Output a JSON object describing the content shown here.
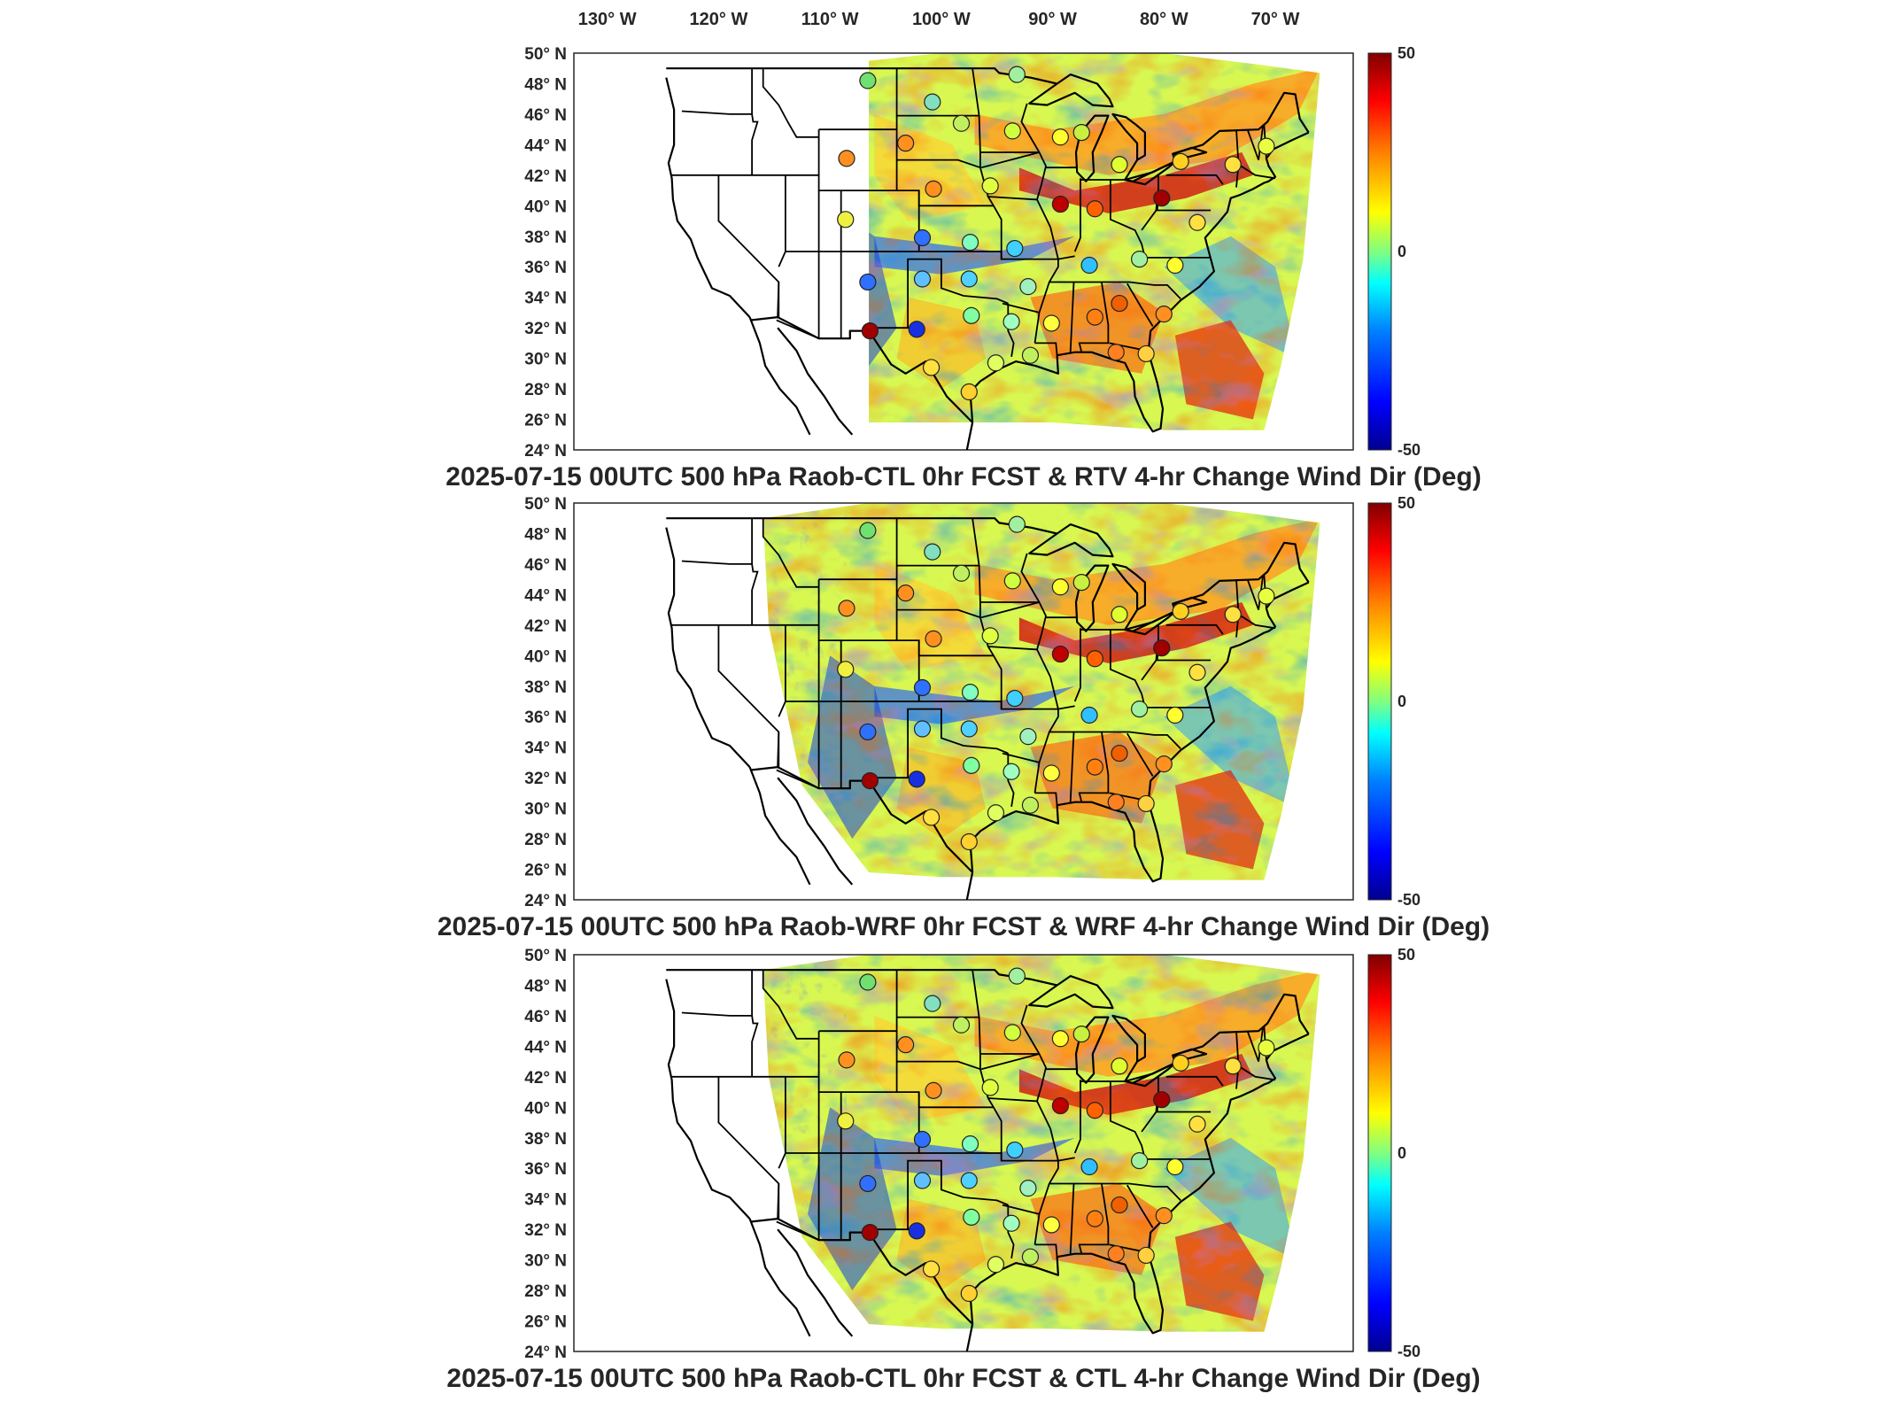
{
  "lon_labels": [
    "130",
    "120",
    "110",
    "100",
    "90",
    "80",
    "70"
  ],
  "lon_suffix": "W",
  "lat_labels": [
    "50",
    "48",
    "46",
    "44",
    "42",
    "40",
    "38",
    "36",
    "34",
    "32",
    "30",
    "28",
    "26",
    "24"
  ],
  "lat_suffix": "N",
  "degree_symbol": "°",
  "colorbar": {
    "max_label": "50",
    "mid_label": "0",
    "min_label": "-50",
    "colors": [
      "#00008f",
      "#0000ff",
      "#0080ff",
      "#00ffff",
      "#80ff80",
      "#ffff00",
      "#ff8000",
      "#ff0000",
      "#800000"
    ]
  },
  "panels": [
    {
      "title": "2025-07-15 00UTC 500 hPa Raob-CTL 0hr FCST & RTV 4-hr Change Wind Dir (Deg)"
    },
    {
      "title": "2025-07-15 00UTC 500 hPa Raob-WRF 0hr FCST & WRF 4-hr Change Wind Dir (Deg)"
    },
    {
      "title": "2025-07-15 00UTC 500 hPa Raob-CTL 0hr FCST & CTL 4-hr Change Wind Dir (Deg)"
    }
  ],
  "stations": [
    {
      "lon": -106.6,
      "lat": 48.2,
      "color": "#70e070"
    },
    {
      "lon": -100.8,
      "lat": 46.8,
      "color": "#80e0c0"
    },
    {
      "lon": -93.2,
      "lat": 48.6,
      "color": "#a0f0a0"
    },
    {
      "lon": -103.2,
      "lat": 44.1,
      "color": "#ff9020"
    },
    {
      "lon": -98.2,
      "lat": 45.4,
      "color": "#c0f060"
    },
    {
      "lon": -93.6,
      "lat": 44.9,
      "color": "#d0ff40"
    },
    {
      "lon": -89.3,
      "lat": 44.5,
      "color": "#ffff30"
    },
    {
      "lon": -87.4,
      "lat": 44.8,
      "color": "#c8f040"
    },
    {
      "lon": -84.0,
      "lat": 42.7,
      "color": "#e0ff30"
    },
    {
      "lon": -78.5,
      "lat": 42.9,
      "color": "#ffd020"
    },
    {
      "lon": -73.8,
      "lat": 42.7,
      "color": "#ffe040"
    },
    {
      "lon": -70.8,
      "lat": 43.9,
      "color": "#e8ff40"
    },
    {
      "lon": -108.5,
      "lat": 43.1,
      "color": "#ff9020"
    },
    {
      "lon": -108.6,
      "lat": 39.1,
      "color": "#f0f040"
    },
    {
      "lon": -100.7,
      "lat": 41.1,
      "color": "#ff9020"
    },
    {
      "lon": -95.6,
      "lat": 41.3,
      "color": "#e0ff40"
    },
    {
      "lon": -89.3,
      "lat": 40.1,
      "color": "#c00000"
    },
    {
      "lon": -86.2,
      "lat": 39.8,
      "color": "#ff6000"
    },
    {
      "lon": -80.2,
      "lat": 40.5,
      "color": "#a00000"
    },
    {
      "lon": -77.0,
      "lat": 38.9,
      "color": "#ffe040"
    },
    {
      "lon": -101.7,
      "lat": 37.9,
      "color": "#3070ff"
    },
    {
      "lon": -97.4,
      "lat": 37.6,
      "color": "#80ffc0"
    },
    {
      "lon": -93.4,
      "lat": 37.2,
      "color": "#40d0ff"
    },
    {
      "lon": -86.7,
      "lat": 36.1,
      "color": "#30c0ff"
    },
    {
      "lon": -82.2,
      "lat": 36.5,
      "color": "#a0f0a0"
    },
    {
      "lon": -79.0,
      "lat": 36.1,
      "color": "#ffff30"
    },
    {
      "lon": -106.6,
      "lat": 35.0,
      "color": "#3070ff"
    },
    {
      "lon": -101.7,
      "lat": 35.2,
      "color": "#60c0ff"
    },
    {
      "lon": -97.5,
      "lat": 35.2,
      "color": "#50d0ff"
    },
    {
      "lon": -92.2,
      "lat": 34.7,
      "color": "#a0f0c0"
    },
    {
      "lon": -86.2,
      "lat": 32.7,
      "color": "#ff8010"
    },
    {
      "lon": -84.0,
      "lat": 33.6,
      "color": "#f06000"
    },
    {
      "lon": -80.0,
      "lat": 32.9,
      "color": "#ff9020"
    },
    {
      "lon": -106.4,
      "lat": 31.8,
      "color": "#a00000"
    },
    {
      "lon": -102.2,
      "lat": 31.9,
      "color": "#1830e0"
    },
    {
      "lon": -97.3,
      "lat": 32.8,
      "color": "#80ffa0"
    },
    {
      "lon": -93.7,
      "lat": 32.4,
      "color": "#a0ffc0"
    },
    {
      "lon": -90.1,
      "lat": 32.3,
      "color": "#ffff40"
    },
    {
      "lon": -84.3,
      "lat": 30.4,
      "color": "#ff8020"
    },
    {
      "lon": -100.9,
      "lat": 29.4,
      "color": "#ffe040"
    },
    {
      "lon": -97.5,
      "lat": 27.8,
      "color": "#ffd030"
    },
    {
      "lon": -95.1,
      "lat": 29.7,
      "color": "#e0ff60"
    },
    {
      "lon": -92.0,
      "lat": 30.2,
      "color": "#c0f060"
    },
    {
      "lon": -81.6,
      "lat": 30.3,
      "color": "#ffd040"
    }
  ],
  "state_borders": [
    [
      [
        -124.2,
        42.0
      ],
      [
        -120.0,
        42.0
      ],
      [
        -117.0,
        42.0
      ],
      [
        -111.0,
        42.0
      ]
    ],
    [
      [
        -120.0,
        42.0
      ],
      [
        -120.0,
        39.0
      ],
      [
        -114.6,
        35.0
      ],
      [
        -114.7,
        32.7
      ]
    ],
    [
      [
        -117.0,
        49.0
      ],
      [
        -117.0,
        46.0
      ],
      [
        -116.9,
        45.5
      ],
      [
        -116.5,
        45.5
      ],
      [
        -117.0,
        44.3
      ],
      [
        -117.0,
        42.0
      ]
    ],
    [
      [
        -123.3,
        46.2
      ],
      [
        -119.0,
        46.0
      ],
      [
        -117.0,
        46.0
      ]
    ],
    [
      [
        -114.0,
        42.0
      ],
      [
        -114.0,
        37.0
      ],
      [
        -114.6,
        36.0
      ]
    ],
    [
      [
        -111.0,
        45.0
      ],
      [
        -111.0,
        41.0
      ],
      [
        -104.0,
        41.0
      ]
    ],
    [
      [
        -111.0,
        45.0
      ],
      [
        -104.0,
        45.0
      ]
    ],
    [
      [
        -116.0,
        49.0
      ],
      [
        -116.0,
        47.8
      ],
      [
        -114.6,
        46.6
      ],
      [
        -113.8,
        45.5
      ],
      [
        -113.0,
        44.5
      ],
      [
        -111.0,
        44.5
      ]
    ],
    [
      [
        -114.0,
        37.0
      ],
      [
        -102.0,
        37.0
      ]
    ],
    [
      [
        -111.0,
        41.0
      ],
      [
        -111.0,
        31.3
      ]
    ],
    [
      [
        -109.0,
        41.0
      ],
      [
        -109.0,
        31.3
      ]
    ],
    [
      [
        -114.8,
        32.5
      ],
      [
        -111.0,
        31.3
      ],
      [
        -108.2,
        31.3
      ],
      [
        -108.2,
        31.8
      ],
      [
        -106.5,
        31.8
      ]
    ],
    [
      [
        -106.6,
        32.0
      ],
      [
        -103.0,
        32.0
      ],
      [
        -103.0,
        36.5
      ],
      [
        -100.0,
        36.5
      ],
      [
        -100.0,
        34.6
      ],
      [
        -98.0,
        34.1
      ],
      [
        -95.0,
        33.9
      ],
      [
        -94.0,
        33.6
      ]
    ],
    [
      [
        -102.0,
        41.0
      ],
      [
        -102.0,
        37.0
      ],
      [
        -94.6,
        37.0
      ],
      [
        -94.6,
        36.5
      ],
      [
        -89.5,
        36.5
      ],
      [
        -88.0,
        36.7
      ]
    ],
    [
      [
        -104.0,
        49.0
      ],
      [
        -104.0,
        41.0
      ],
      [
        -102.0,
        41.0
      ],
      [
        -102.0,
        40.0
      ],
      [
        -95.3,
        40.0
      ]
    ],
    [
      [
        -104.0,
        45.9
      ],
      [
        -96.6,
        45.9
      ]
    ],
    [
      [
        -104.0,
        43.0
      ],
      [
        -98.5,
        43.0
      ],
      [
        -96.5,
        42.5
      ]
    ],
    [
      [
        -97.2,
        49.0
      ],
      [
        -96.6,
        45.9
      ],
      [
        -96.5,
        43.5
      ],
      [
        -91.2,
        43.5
      ]
    ],
    [
      [
        -96.5,
        43.5
      ],
      [
        -96.5,
        42.5
      ],
      [
        -95.8,
        40.6
      ],
      [
        -95.3,
        40.0
      ],
      [
        -94.6,
        39.1
      ],
      [
        -94.6,
        36.5
      ]
    ],
    [
      [
        -96.4,
        42.5
      ],
      [
        -91.2,
        43.5
      ],
      [
        -90.6,
        42.6
      ],
      [
        -91.0,
        41.4
      ],
      [
        -91.4,
        40.4
      ],
      [
        -95.8,
        40.6
      ]
    ],
    [
      [
        -92.3,
        46.7
      ],
      [
        -92.8,
        45.5
      ],
      [
        -91.2,
        43.5
      ]
    ],
    [
      [
        -90.6,
        42.5
      ],
      [
        -87.8,
        42.5
      ]
    ],
    [
      [
        -91.4,
        40.4
      ],
      [
        -90.2,
        38.6
      ],
      [
        -89.5,
        36.5
      ],
      [
        -89.5,
        36.0
      ],
      [
        -90.3,
        35.0
      ],
      [
        -91.2,
        33.0
      ],
      [
        -91.6,
        31.0
      ]
    ],
    [
      [
        -94.0,
        33.6
      ],
      [
        -94.0,
        31.8
      ],
      [
        -93.5,
        31.0
      ],
      [
        -93.7,
        30.1
      ]
    ],
    [
      [
        -94.5,
        33.6
      ],
      [
        -91.2,
        33.0
      ]
    ],
    [
      [
        -91.6,
        31.0
      ],
      [
        -89.7,
        31.0
      ],
      [
        -89.6,
        30.2
      ]
    ],
    [
      [
        -88.1,
        35.0
      ],
      [
        -88.4,
        30.4
      ]
    ],
    [
      [
        -85.6,
        35.0
      ],
      [
        -85.0,
        32.2
      ],
      [
        -85.0,
        31.0
      ],
      [
        -87.6,
        31.0
      ],
      [
        -87.4,
        30.4
      ]
    ],
    [
      [
        -90.3,
        35.0
      ],
      [
        -84.3,
        35.0
      ]
    ],
    [
      [
        -88.0,
        37.0
      ],
      [
        -87.5,
        37.9
      ],
      [
        -87.5,
        41.8
      ]
    ],
    [
      [
        -84.8,
        41.7
      ],
      [
        -84.8,
        39.1
      ],
      [
        -82.6,
        38.4
      ],
      [
        -82.0,
        37.5
      ],
      [
        -81.7,
        36.6
      ],
      [
        -75.9,
        36.6
      ]
    ],
    [
      [
        -87.5,
        41.7
      ],
      [
        -84.8,
        41.7
      ],
      [
        -83.5,
        41.7
      ]
    ],
    [
      [
        -80.5,
        42.0
      ],
      [
        -80.5,
        40.6
      ],
      [
        -80.6,
        39.7
      ],
      [
        -79.5,
        39.7
      ],
      [
        -75.8,
        39.7
      ]
    ],
    [
      [
        -80.6,
        40.6
      ],
      [
        -80.7,
        39.7
      ],
      [
        -82.0,
        38.4
      ]
    ],
    [
      [
        -79.8,
        42.0
      ],
      [
        -75.3,
        42.0
      ],
      [
        -74.7,
        41.4
      ]
    ],
    [
      [
        -84.3,
        35.0
      ],
      [
        -83.1,
        35.0
      ],
      [
        -80.9,
        34.8
      ],
      [
        -79.7,
        34.8
      ],
      [
        -78.5,
        33.9
      ]
    ],
    [
      [
        -83.3,
        34.9
      ],
      [
        -82.0,
        33.3
      ],
      [
        -81.0,
        32.1
      ]
    ],
    [
      [
        -84.9,
        31.0
      ],
      [
        -82.2,
        30.6
      ],
      [
        -81.5,
        30.7
      ]
    ],
    [
      [
        -73.5,
        45.0
      ],
      [
        -73.3,
        42.7
      ],
      [
        -73.5,
        41.2
      ]
    ],
    [
      [
        -73.3,
        42.7
      ],
      [
        -71.8,
        42.0
      ],
      [
        -70.0,
        41.8
      ]
    ],
    [
      [
        -72.5,
        45.0
      ],
      [
        -71.5,
        43.0
      ],
      [
        -71.1,
        45.3
      ]
    ],
    [
      [
        -70.8,
        43.1
      ],
      [
        -71.0,
        45.3
      ]
    ],
    [
      [
        -114.6,
        35.0
      ],
      [
        -114.6,
        32.7
      ]
    ]
  ],
  "coast": [
    [
      [
        -124.7,
        48.4
      ],
      [
        -124.0,
        46.3
      ],
      [
        -124.0,
        44.0
      ],
      [
        -124.5,
        42.8
      ],
      [
        -124.2,
        41.8
      ],
      [
        -124.1,
        40.4
      ],
      [
        -123.7,
        39.0
      ],
      [
        -122.5,
        37.8
      ],
      [
        -121.9,
        36.6
      ],
      [
        -120.6,
        34.6
      ],
      [
        -119.0,
        34.1
      ],
      [
        -117.2,
        32.7
      ]
    ],
    [
      [
        -117.2,
        32.7
      ],
      [
        -116.3,
        31.0
      ],
      [
        -115.8,
        29.5
      ],
      [
        -114.5,
        28.0
      ],
      [
        -113.0,
        26.8
      ],
      [
        -111.8,
        25.0
      ]
    ],
    [
      [
        -114.7,
        32.0
      ],
      [
        -113.0,
        30.5
      ],
      [
        -112.0,
        29.0
      ],
      [
        -110.5,
        27.5
      ],
      [
        -109.2,
        26.0
      ],
      [
        -108.0,
        25.0
      ]
    ],
    [
      [
        -97.2,
        25.8
      ],
      [
        -97.4,
        27.8
      ],
      [
        -96.5,
        28.5
      ],
      [
        -94.8,
        29.3
      ],
      [
        -93.3,
        29.8
      ],
      [
        -91.5,
        29.5
      ],
      [
        -89.5,
        29.0
      ],
      [
        -89.6,
        30.2
      ],
      [
        -88.0,
        30.4
      ],
      [
        -86.5,
        30.4
      ],
      [
        -84.5,
        29.9
      ],
      [
        -83.5,
        29.7
      ],
      [
        -82.7,
        28.5
      ],
      [
        -82.6,
        27.5
      ],
      [
        -81.8,
        26.1
      ],
      [
        -81.0,
        25.2
      ],
      [
        -80.3,
        25.4
      ],
      [
        -80.1,
        26.7
      ],
      [
        -80.6,
        28.4
      ],
      [
        -81.4,
        30.4
      ],
      [
        -81.2,
        31.8
      ],
      [
        -80.0,
        32.7
      ],
      [
        -78.5,
        33.8
      ],
      [
        -76.8,
        34.7
      ],
      [
        -75.5,
        35.7
      ],
      [
        -75.9,
        36.8
      ],
      [
        -76.3,
        37.9
      ],
      [
        -75.7,
        38.4
      ],
      [
        -75.1,
        38.9
      ],
      [
        -74.3,
        39.6
      ],
      [
        -74.0,
        40.5
      ],
      [
        -73.2,
        40.7
      ],
      [
        -72.0,
        41.1
      ],
      [
        -71.0,
        41.5
      ],
      [
        -70.6,
        41.6
      ],
      [
        -70.0,
        41.9
      ],
      [
        -70.6,
        42.6
      ],
      [
        -70.8,
        43.1
      ],
      [
        -70.2,
        43.7
      ],
      [
        -68.5,
        44.3
      ],
      [
        -67.0,
        44.8
      ]
    ],
    [
      [
        -97.2,
        25.8
      ],
      [
        -97.7,
        24.0
      ]
    ]
  ],
  "intl_border": [
    [
      [
        -124.7,
        49.0
      ],
      [
        -95.2,
        49.0
      ],
      [
        -94.8,
        48.7
      ],
      [
        -92.0,
        48.4
      ],
      [
        -89.6,
        48.0
      ]
    ],
    [
      [
        -82.4,
        43.0
      ],
      [
        -83.0,
        42.3
      ],
      [
        -83.5,
        41.7
      ],
      [
        -82.8,
        41.6
      ],
      [
        -79.0,
        42.9
      ],
      [
        -79.2,
        43.4
      ],
      [
        -76.5,
        44.0
      ],
      [
        -75.0,
        44.9
      ],
      [
        -71.5,
        45.0
      ],
      [
        -70.7,
        45.5
      ],
      [
        -69.2,
        47.4
      ],
      [
        -68.2,
        47.3
      ],
      [
        -67.8,
        45.7
      ],
      [
        -67.0,
        44.8
      ]
    ],
    [
      [
        -117.1,
        32.5
      ],
      [
        -114.7,
        32.7
      ],
      [
        -111.0,
        31.3
      ],
      [
        -108.2,
        31.3
      ],
      [
        -108.2,
        31.8
      ],
      [
        -106.5,
        31.8
      ],
      [
        -104.5,
        29.6
      ],
      [
        -103.2,
        29.0
      ],
      [
        -101.4,
        29.8
      ],
      [
        -99.5,
        27.5
      ],
      [
        -97.2,
        25.8
      ]
    ]
  ],
  "lakes": [
    [
      [
        -92.1,
        46.7
      ],
      [
        -90.5,
        46.6
      ],
      [
        -88.0,
        47.4
      ],
      [
        -86.4,
        46.6
      ],
      [
        -84.6,
        46.5
      ],
      [
        -84.9,
        47.0
      ],
      [
        -86.0,
        48.0
      ],
      [
        -88.4,
        48.6
      ],
      [
        -89.6,
        48.0
      ],
      [
        -92.1,
        46.7
      ]
    ],
    [
      [
        -87.8,
        42.2
      ],
      [
        -87.9,
        43.5
      ],
      [
        -87.5,
        44.8
      ],
      [
        -86.2,
        45.9
      ],
      [
        -85.0,
        45.9
      ],
      [
        -85.6,
        44.8
      ],
      [
        -86.4,
        43.5
      ],
      [
        -86.3,
        42.2
      ],
      [
        -87.0,
        41.6
      ],
      [
        -87.8,
        42.2
      ]
    ],
    [
      [
        -84.6,
        46.0
      ],
      [
        -83.4,
        45.8
      ],
      [
        -82.5,
        45.3
      ],
      [
        -81.7,
        44.8
      ],
      [
        -81.7,
        43.3
      ],
      [
        -82.4,
        43.0
      ],
      [
        -82.4,
        44.1
      ],
      [
        -83.4,
        44.9
      ],
      [
        -84.6,
        46.0
      ]
    ],
    [
      [
        -83.5,
        41.7
      ],
      [
        -81.0,
        42.2
      ],
      [
        -79.0,
        42.9
      ],
      [
        -79.6,
        42.5
      ],
      [
        -81.7,
        41.4
      ],
      [
        -83.5,
        41.7
      ]
    ],
    [
      [
        -79.2,
        43.4
      ],
      [
        -77.5,
        43.8
      ],
      [
        -76.2,
        43.5
      ],
      [
        -77.8,
        43.2
      ],
      [
        -79.2,
        43.4
      ]
    ]
  ]
}
